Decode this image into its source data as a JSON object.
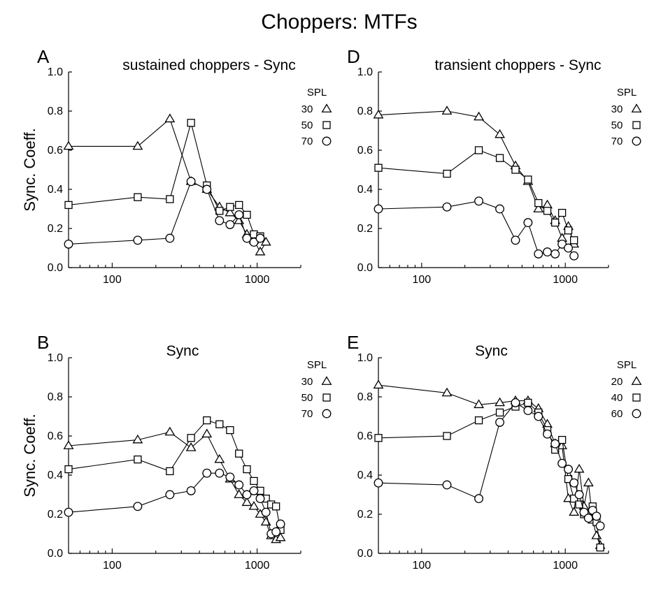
{
  "figure": {
    "title": "Choppers: MTFs"
  },
  "chart_data": [
    {
      "id": "A",
      "letter": "A",
      "type": "line",
      "title": "sustained choppers - Sync",
      "xlabel": "",
      "ylabel": "Sync. Coeff.",
      "xscale": "log",
      "xlim": [
        50,
        2000
      ],
      "ylim": [
        0,
        1
      ],
      "xticks": [
        100,
        1000
      ],
      "xtick_labels": [
        "100",
        "1000"
      ],
      "yticks": [
        0,
        0.2,
        0.4,
        0.6,
        0.8,
        1.0
      ],
      "ytick_labels": [
        "0.0",
        "0.2",
        "0.4",
        "0.6",
        "0.8",
        "1.0"
      ],
      "grid": false,
      "legend": {
        "title": "SPL",
        "position": "top-right"
      },
      "series": [
        {
          "name": "30",
          "marker": "triangle",
          "x": [
            50,
            150,
            250,
            350,
            450,
            550,
            650,
            750,
            850,
            950,
            1050,
            1150
          ],
          "y": [
            0.62,
            0.62,
            0.76,
            0.44,
            0.4,
            0.31,
            0.28,
            0.24,
            0.17,
            0.14,
            0.08,
            0.13
          ]
        },
        {
          "name": "50",
          "marker": "square",
          "x": [
            50,
            150,
            250,
            350,
            450,
            550,
            650,
            750,
            850,
            950,
            1050
          ],
          "y": [
            0.32,
            0.36,
            0.35,
            0.74,
            0.42,
            0.29,
            0.31,
            0.32,
            0.27,
            0.17,
            0.16
          ]
        },
        {
          "name": "70",
          "marker": "circle",
          "x": [
            50,
            150,
            250,
            350,
            450,
            550,
            650,
            750,
            850,
            950,
            1050
          ],
          "y": [
            0.12,
            0.14,
            0.15,
            0.44,
            0.4,
            0.24,
            0.22,
            0.27,
            0.15,
            0.13,
            0.15
          ]
        }
      ]
    },
    {
      "id": "D",
      "letter": "D",
      "type": "line",
      "title": "transient choppers - Sync",
      "xlabel": "",
      "ylabel": "",
      "xscale": "log",
      "xlim": [
        50,
        2000
      ],
      "ylim": [
        0,
        1
      ],
      "xticks": [
        100,
        1000
      ],
      "xtick_labels": [
        "100",
        "1000"
      ],
      "yticks": [
        0,
        0.2,
        0.4,
        0.6,
        0.8,
        1.0
      ],
      "ytick_labels": [
        "0.0",
        "0.2",
        "0.4",
        "0.6",
        "0.8",
        "1.0"
      ],
      "grid": false,
      "legend": {
        "title": "SPL",
        "position": "top-right"
      },
      "series": [
        {
          "name": "30",
          "marker": "triangle",
          "x": [
            50,
            150,
            250,
            350,
            450,
            550,
            650,
            750,
            850,
            950,
            1050,
            1150
          ],
          "y": [
            0.78,
            0.8,
            0.77,
            0.68,
            0.52,
            0.44,
            0.3,
            0.32,
            0.24,
            0.15,
            0.21,
            0.12
          ]
        },
        {
          "name": "50",
          "marker": "square",
          "x": [
            50,
            150,
            250,
            350,
            450,
            550,
            650,
            750,
            850,
            950,
            1050,
            1150
          ],
          "y": [
            0.51,
            0.48,
            0.6,
            0.56,
            0.5,
            0.45,
            0.33,
            0.29,
            0.23,
            0.28,
            0.19,
            0.14
          ]
        },
        {
          "name": "70",
          "marker": "circle",
          "x": [
            50,
            150,
            250,
            350,
            450,
            550,
            650,
            750,
            850,
            950,
            1050,
            1150
          ],
          "y": [
            0.3,
            0.31,
            0.34,
            0.3,
            0.14,
            0.23,
            0.07,
            0.08,
            0.07,
            0.12,
            0.1,
            0.06
          ]
        }
      ]
    },
    {
      "id": "B",
      "letter": "B",
      "type": "line",
      "title": "Sync",
      "xlabel": "",
      "ylabel": "Sync. Coeff.",
      "xscale": "log",
      "xlim": [
        50,
        2000
      ],
      "ylim": [
        0,
        1
      ],
      "xticks": [
        100,
        1000
      ],
      "xtick_labels": [
        "100",
        "1000"
      ],
      "yticks": [
        0,
        0.2,
        0.4,
        0.6,
        0.8,
        1.0
      ],
      "ytick_labels": [
        "0.0",
        "0.2",
        "0.4",
        "0.6",
        "0.8",
        "1.0"
      ],
      "grid": false,
      "legend": {
        "title": "SPL",
        "position": "top-right"
      },
      "series": [
        {
          "name": "30",
          "marker": "triangle",
          "x": [
            50,
            150,
            250,
            350,
            450,
            550,
            650,
            750,
            850,
            950,
            1050,
            1150,
            1250,
            1350,
            1450
          ],
          "y": [
            0.55,
            0.58,
            0.62,
            0.54,
            0.61,
            0.48,
            0.38,
            0.3,
            0.26,
            0.24,
            0.2,
            0.16,
            0.09,
            0.07,
            0.08
          ]
        },
        {
          "name": "50",
          "marker": "square",
          "x": [
            50,
            150,
            250,
            350,
            450,
            550,
            650,
            750,
            850,
            950,
            1050,
            1150,
            1250,
            1350,
            1450
          ],
          "y": [
            0.43,
            0.48,
            0.42,
            0.59,
            0.68,
            0.66,
            0.63,
            0.51,
            0.43,
            0.37,
            0.32,
            0.28,
            0.25,
            0.24,
            0.12
          ]
        },
        {
          "name": "70",
          "marker": "circle",
          "x": [
            50,
            150,
            250,
            350,
            450,
            550,
            650,
            750,
            850,
            950,
            1050,
            1150,
            1250,
            1350,
            1450
          ],
          "y": [
            0.21,
            0.24,
            0.3,
            0.32,
            0.41,
            0.41,
            0.39,
            0.35,
            0.3,
            0.32,
            0.28,
            0.21,
            0.1,
            0.11,
            0.15
          ]
        }
      ]
    },
    {
      "id": "E",
      "letter": "E",
      "type": "line",
      "title": "Sync",
      "xlabel": "",
      "ylabel": "",
      "xscale": "log",
      "xlim": [
        50,
        2000
      ],
      "ylim": [
        0,
        1
      ],
      "xticks": [
        100,
        1000
      ],
      "xtick_labels": [
        "100",
        "1000"
      ],
      "yticks": [
        0,
        0.2,
        0.4,
        0.6,
        0.8,
        1.0
      ],
      "ytick_labels": [
        "0.0",
        "0.2",
        "0.4",
        "0.6",
        "0.8",
        "1.0"
      ],
      "grid": false,
      "legend": {
        "title": "SPL",
        "position": "top-right"
      },
      "series": [
        {
          "name": "20",
          "marker": "triangle",
          "x": [
            50,
            150,
            250,
            350,
            450,
            550,
            650,
            750,
            850,
            950,
            1050,
            1150,
            1250,
            1350,
            1450,
            1550,
            1650,
            1750
          ],
          "y": [
            0.86,
            0.82,
            0.76,
            0.77,
            0.78,
            0.78,
            0.74,
            0.66,
            0.56,
            0.55,
            0.28,
            0.21,
            0.43,
            0.24,
            0.36,
            0.17,
            0.09,
            0.04
          ]
        },
        {
          "name": "40",
          "marker": "square",
          "x": [
            50,
            150,
            250,
            350,
            450,
            550,
            650,
            750,
            850,
            950,
            1050,
            1150,
            1250,
            1350,
            1450,
            1550,
            1650,
            1750
          ],
          "y": [
            0.59,
            0.6,
            0.68,
            0.72,
            0.75,
            0.77,
            0.72,
            0.63,
            0.53,
            0.58,
            0.38,
            0.28,
            0.25,
            0.2,
            0.2,
            0.24,
            0.16,
            0.03
          ]
        },
        {
          "name": "60",
          "marker": "circle",
          "x": [
            50,
            150,
            250,
            350,
            450,
            550,
            650,
            750,
            850,
            950,
            1050,
            1150,
            1250,
            1350,
            1450,
            1550,
            1650,
            1750
          ],
          "y": [
            0.36,
            0.35,
            0.28,
            0.67,
            0.77,
            0.73,
            0.7,
            0.61,
            0.56,
            0.46,
            0.43,
            0.36,
            0.3,
            0.21,
            0.18,
            0.22,
            0.19,
            0.14
          ]
        }
      ]
    }
  ]
}
